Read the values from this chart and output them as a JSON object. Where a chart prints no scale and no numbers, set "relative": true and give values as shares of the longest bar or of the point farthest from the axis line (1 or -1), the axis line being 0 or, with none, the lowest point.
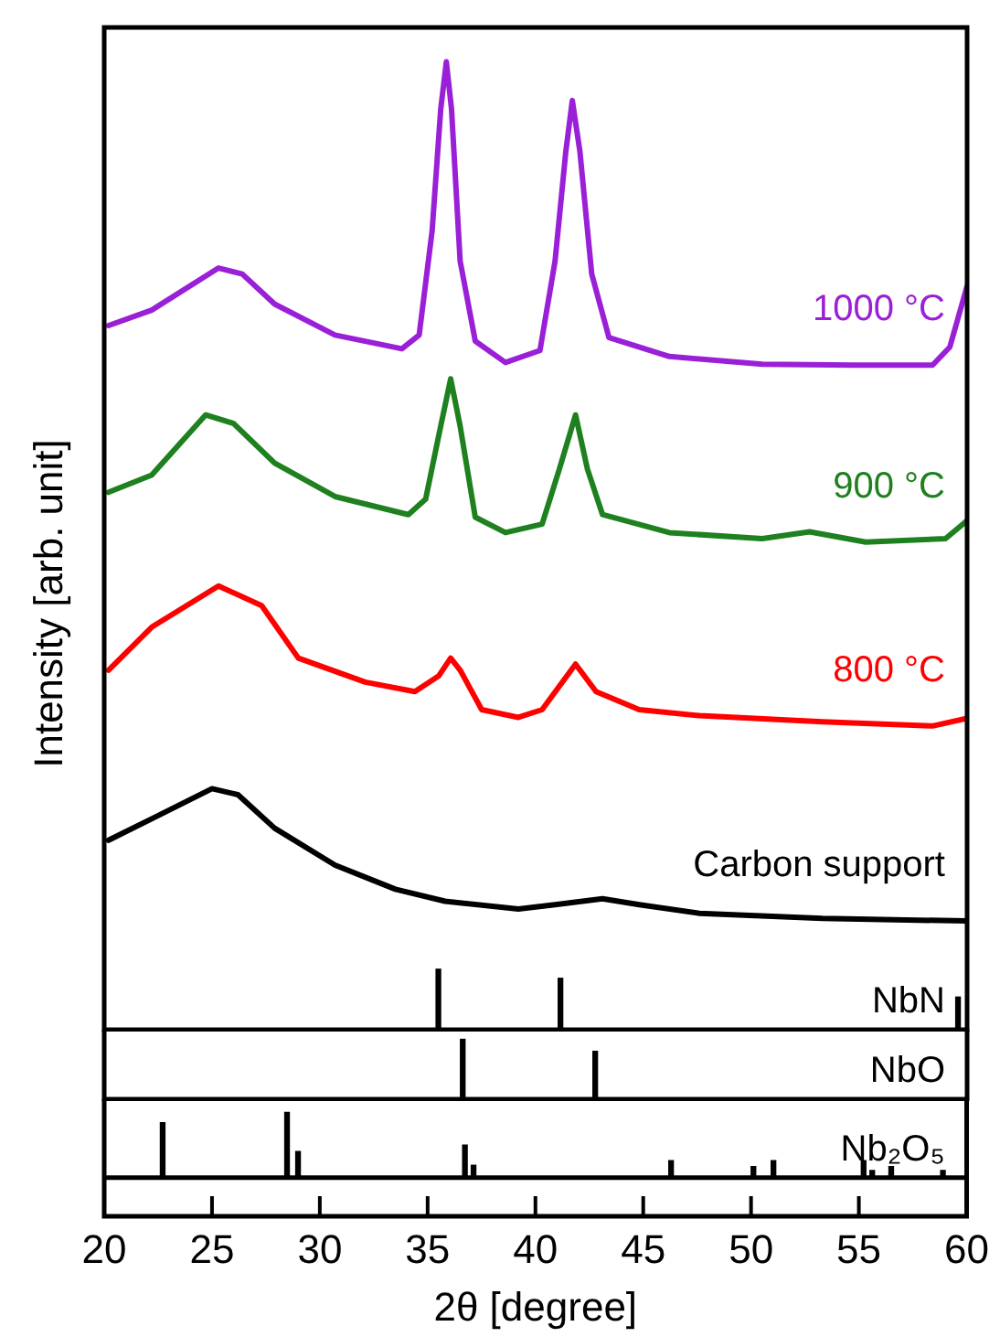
{
  "chart_data": [
    {
      "type": "line",
      "ylabel": "Intensity [arb. unit]",
      "relative": true,
      "xlim": [
        20,
        60
      ],
      "tick_labels": false,
      "grid": false,
      "legend": false,
      "series": [
        {
          "name": "1000 °C",
          "color": "#9a20d8",
          "x": [
            20.2,
            22.2,
            25.3,
            26.4,
            27.9,
            30.7,
            33.8,
            34.6,
            35.2,
            35.6,
            35.86,
            36.1,
            36.5,
            37.2,
            38.6,
            40.2,
            40.9,
            41.4,
            41.7,
            42.05,
            42.6,
            43.4,
            46.2,
            50.5,
            54.7,
            58.4,
            59.2,
            60
          ],
          "values": [
            0.693,
            0.711,
            0.76,
            0.753,
            0.718,
            0.682,
            0.666,
            0.682,
            0.803,
            0.945,
            1.0,
            0.945,
            0.768,
            0.675,
            0.65,
            0.664,
            0.768,
            0.896,
            0.955,
            0.896,
            0.753,
            0.679,
            0.657,
            0.648,
            0.647,
            0.647,
            0.668,
            0.739
          ]
        },
        {
          "name": "900 °C",
          "color": "#1e801e",
          "x": [
            20.2,
            22.2,
            24.7,
            26.0,
            27.9,
            30.7,
            34.1,
            34.9,
            35.6,
            36.06,
            36.5,
            37.2,
            38.6,
            40.3,
            41.1,
            41.85,
            42.4,
            43.1,
            46.2,
            50.5,
            52.7,
            55.3,
            59.0,
            60
          ],
          "values": [
            0.499,
            0.519,
            0.589,
            0.579,
            0.533,
            0.494,
            0.473,
            0.491,
            0.576,
            0.631,
            0.576,
            0.47,
            0.452,
            0.462,
            0.526,
            0.589,
            0.526,
            0.473,
            0.452,
            0.445,
            0.453,
            0.441,
            0.445,
            0.466
          ]
        },
        {
          "name": "800 °C",
          "color": "#ff0000",
          "x": [
            20.2,
            22.2,
            25.3,
            27.3,
            29.0,
            32.1,
            34.4,
            35.5,
            36.06,
            36.5,
            37.5,
            39.2,
            40.3,
            41.85,
            42.8,
            44.8,
            47.6,
            53.3,
            58.4,
            60
          ],
          "values": [
            0.292,
            0.342,
            0.39,
            0.367,
            0.306,
            0.278,
            0.267,
            0.285,
            0.306,
            0.292,
            0.246,
            0.237,
            0.246,
            0.299,
            0.267,
            0.246,
            0.239,
            0.232,
            0.227,
            0.236
          ]
        },
        {
          "name": "Carbon support",
          "color": "#000000",
          "x": [
            20.2,
            22.2,
            25.0,
            26.2,
            27.9,
            30.7,
            33.5,
            35.8,
            39.2,
            40.9,
            43.1,
            44.8,
            47.6,
            53.3,
            60
          ],
          "values": [
            0.094,
            0.119,
            0.154,
            0.147,
            0.108,
            0.065,
            0.037,
            0.023,
            0.014,
            0.019,
            0.026,
            0.019,
            0.009,
            0.003,
            0
          ]
        }
      ]
    },
    {
      "type": "bar",
      "relative": true,
      "xlim": [
        20,
        60
      ],
      "tick_labels": false,
      "grid": false,
      "legend": false,
      "x": [
        35.49,
        41.15,
        59.58
      ],
      "series": [
        {
          "name": "NbN",
          "color": "#000000",
          "values": [
            1,
            0.85,
            0.54
          ]
        }
      ]
    },
    {
      "type": "bar",
      "relative": true,
      "xlim": [
        20,
        60
      ],
      "tick_labels": false,
      "grid": false,
      "legend": false,
      "x": [
        36.62,
        42.76
      ],
      "series": [
        {
          "name": "NbO",
          "color": "#000000",
          "values": [
            1,
            0.8
          ]
        }
      ]
    },
    {
      "type": "bar",
      "relative": true,
      "xlabel": "2θ [degree]",
      "xlim": [
        20,
        60
      ],
      "xticks": [
        20,
        25,
        30,
        35,
        40,
        45,
        50,
        55,
        60
      ],
      "tick_labels": "x",
      "grid": false,
      "legend": false,
      "x": [
        22.71,
        28.48,
        28.99,
        36.73,
        37.13,
        46.29,
        50.11,
        51.04,
        55.22,
        55.62,
        56.5,
        58.9
      ],
      "series": [
        {
          "name": "Nb₂O₅",
          "color": "#000000",
          "values": [
            0.84,
            1,
            0.4,
            0.5,
            0.19,
            0.26,
            0.17,
            0.26,
            0.26,
            0.11,
            0.17,
            0.11
          ]
        }
      ]
    }
  ]
}
